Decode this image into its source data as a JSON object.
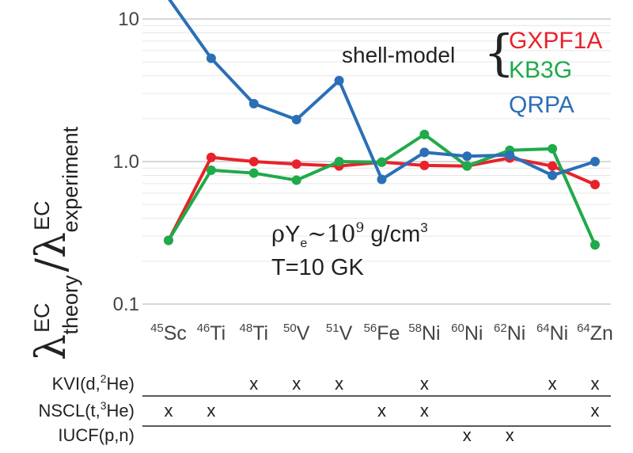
{
  "chart_data": {
    "type": "line",
    "yscale": "log",
    "ylim": [
      0.1,
      10
    ],
    "ytick_labels": [
      "10",
      "1.0",
      "0.1"
    ],
    "ytick_values": [
      10,
      1.0,
      0.1
    ],
    "ylabel": {
      "lambda": "λ",
      "sup_top": "EC",
      "sub_top": "theory",
      "slash": "/",
      "sup_bottom": "EC",
      "sub_bottom": "experiment"
    },
    "categories": [
      {
        "mass": "45",
        "element": "Sc"
      },
      {
        "mass": "46",
        "element": "Ti"
      },
      {
        "mass": "48",
        "element": "Ti"
      },
      {
        "mass": "50",
        "element": "V"
      },
      {
        "mass": "51",
        "element": "V"
      },
      {
        "mass": "56",
        "element": "Fe"
      },
      {
        "mass": "58",
        "element": "Ni"
      },
      {
        "mass": "60",
        "element": "Ni"
      },
      {
        "mass": "62",
        "element": "Ni"
      },
      {
        "mass": "64",
        "element": "Ni"
      },
      {
        "mass": "64",
        "element": "Zn"
      }
    ],
    "series": [
      {
        "name": "GXPF1A",
        "color": "#e8222a",
        "values": [
          0.28,
          1.07,
          1.0,
          0.96,
          0.93,
          0.99,
          0.94,
          0.93,
          1.06,
          0.93,
          0.69
        ]
      },
      {
        "name": "KB3G",
        "color": "#1faa4b",
        "values": [
          0.28,
          0.87,
          0.83,
          0.74,
          1.0,
          0.99,
          1.55,
          0.93,
          1.2,
          1.23,
          0.26
        ]
      },
      {
        "name": "QRPA",
        "color": "#2b6fb6",
        "values": [
          14,
          5.3,
          2.55,
          1.97,
          3.7,
          0.75,
          1.16,
          1.09,
          1.11,
          0.8,
          1.0
        ]
      }
    ],
    "legend": {
      "group_label": "shell-model",
      "brace": "{",
      "entries": [
        "GXPF1A",
        "KB3G",
        "QRPA"
      ]
    },
    "annotation": {
      "rho": "ρ",
      "y": "Y",
      "e": "e",
      "tilde": "~",
      "ten": "10",
      "exp": "9",
      "unit": " g/cm",
      "unit_exp": "3",
      "temperature": "T=10 GK"
    }
  },
  "experiments": {
    "rows": [
      {
        "label": "KVI",
        "reaction": "(d,",
        "iso_mass": "2",
        "iso": "He)",
        "marks": [
          2,
          3,
          4,
          6,
          9,
          10
        ]
      },
      {
        "label": "NSCL",
        "reaction": "(t,",
        "iso_mass": "3",
        "iso": "He)",
        "marks": [
          0,
          1,
          5,
          6,
          10
        ]
      },
      {
        "label": "IUCF",
        "reaction": "(p,n)",
        "iso_mass": "",
        "iso": "",
        "marks": [
          7,
          8
        ]
      }
    ],
    "mark_symbol": "x"
  },
  "colors": {
    "axis": "#cccccc",
    "grid": "#e6e6e6",
    "text": "#222222",
    "tick_text": "#444444",
    "gxpf1a": "#e8222a",
    "kb3g": "#1faa4b",
    "qrpa": "#2b6fb6"
  }
}
